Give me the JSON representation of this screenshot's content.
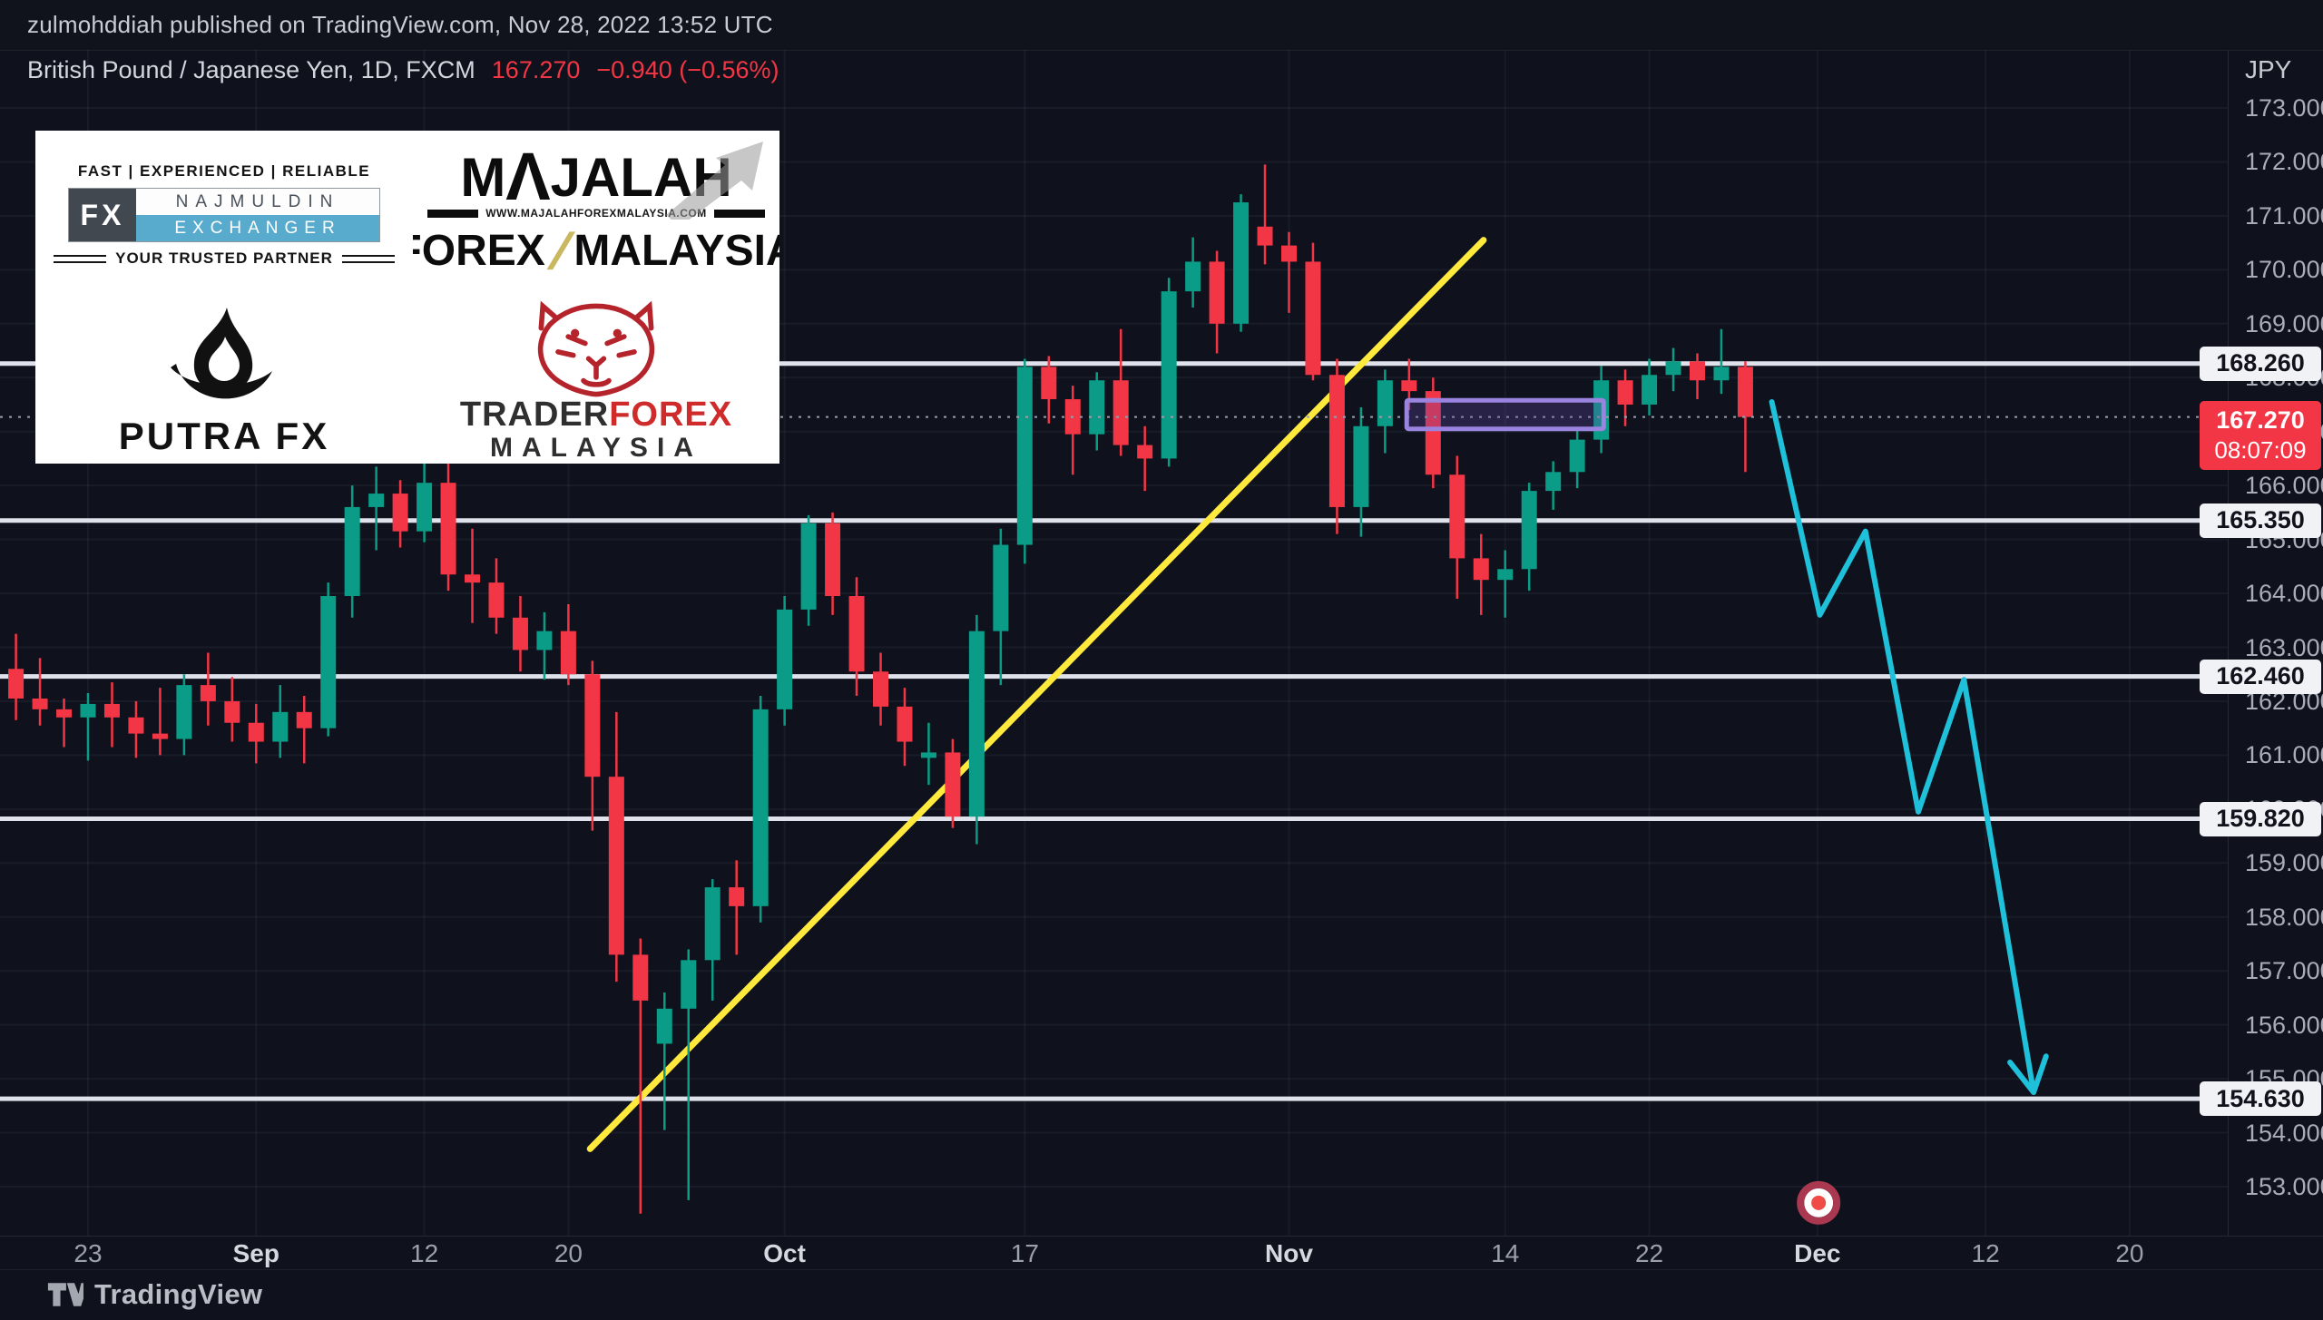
{
  "page": {
    "publish_line": "zulmohddiah published on TradingView.com, Nov 28, 2022 13:52 UTC"
  },
  "legend": {
    "symbol_title": "British Pound / Japanese Yen, 1D, FXCM",
    "last_price": "167.270",
    "change": "−0.940 (−0.56%)"
  },
  "axis": {
    "currency": "JPY",
    "tick_min": 153,
    "tick_max": 173,
    "tick_step": 1,
    "level_labels": [
      "168.260",
      "165.350",
      "162.460",
      "159.820",
      "154.630"
    ],
    "last": {
      "price_label": "167.270",
      "countdown": "08:07:09"
    }
  },
  "time_axis": {
    "labels": [
      {
        "text": "23",
        "day": 3,
        "type": "day"
      },
      {
        "text": "Sep",
        "day": 10,
        "type": "month"
      },
      {
        "text": "12",
        "day": 17,
        "type": "day"
      },
      {
        "text": "20",
        "day": 23,
        "type": "day"
      },
      {
        "text": "Oct",
        "day": 32,
        "type": "month"
      },
      {
        "text": "17",
        "day": 42,
        "type": "day"
      },
      {
        "text": "Nov",
        "day": 53,
        "type": "month"
      },
      {
        "text": "14",
        "day": 62,
        "type": "day"
      },
      {
        "text": "22",
        "day": 68,
        "type": "day"
      },
      {
        "text": "Dec",
        "day": 75,
        "type": "month"
      },
      {
        "text": "12",
        "day": 82,
        "type": "day"
      },
      {
        "text": "20",
        "day": 88,
        "type": "day"
      }
    ]
  },
  "chart_data": {
    "type": "candlestick",
    "title": "British Pound / Japanese Yen, 1D, FXCM",
    "ylim": [
      152.3,
      173.6
    ],
    "grid": true,
    "columns": [
      "date",
      "open",
      "high",
      "low",
      "close"
    ],
    "candles": [
      [
        "Aug 18",
        162.6,
        163.25,
        161.65,
        162.05
      ],
      [
        "Aug 19",
        162.05,
        162.8,
        161.55,
        161.85
      ],
      [
        "Aug 22",
        161.85,
        162.05,
        161.15,
        161.7
      ],
      [
        "Aug 23",
        161.7,
        162.15,
        160.9,
        161.95
      ],
      [
        "Aug 24",
        161.95,
        162.35,
        161.15,
        161.7
      ],
      [
        "Aug 25",
        161.7,
        162.0,
        160.95,
        161.4
      ],
      [
        "Aug 26",
        161.4,
        162.25,
        161.0,
        161.3
      ],
      [
        "Aug 29",
        161.3,
        162.5,
        161.0,
        162.3
      ],
      [
        "Aug 30",
        162.3,
        162.9,
        161.55,
        162.0
      ],
      [
        "Aug 31",
        162.0,
        162.45,
        161.25,
        161.6
      ],
      [
        "Sep 1",
        161.6,
        161.95,
        160.85,
        161.25
      ],
      [
        "Sep 2",
        161.25,
        162.3,
        160.95,
        161.8
      ],
      [
        "Sep 5",
        161.8,
        162.1,
        160.85,
        161.5
      ],
      [
        "Sep 6",
        161.5,
        164.2,
        161.35,
        163.95
      ],
      [
        "Sep 7",
        163.95,
        166.0,
        163.55,
        165.6
      ],
      [
        "Sep 8",
        165.6,
        166.35,
        164.8,
        165.85
      ],
      [
        "Sep 9",
        165.85,
        166.1,
        164.85,
        165.15
      ],
      [
        "Sep 12",
        165.15,
        166.5,
        164.95,
        166.05
      ],
      [
        "Sep 13",
        166.05,
        166.45,
        164.05,
        164.35
      ],
      [
        "Sep 14",
        164.35,
        165.2,
        163.45,
        164.2
      ],
      [
        "Sep 15",
        164.2,
        164.65,
        163.25,
        163.55
      ],
      [
        "Sep 16",
        163.55,
        163.95,
        162.55,
        162.95
      ],
      [
        "Sep 19",
        162.95,
        163.65,
        162.4,
        163.3
      ],
      [
        "Sep 20",
        163.3,
        163.8,
        162.3,
        162.5
      ],
      [
        "Sep 21",
        162.5,
        162.75,
        159.6,
        160.6
      ],
      [
        "Sep 22",
        160.6,
        161.8,
        156.8,
        157.3
      ],
      [
        "Sep 23",
        157.3,
        157.6,
        152.5,
        156.45
      ],
      [
        "Sep 26",
        155.65,
        156.6,
        154.05,
        156.3
      ],
      [
        "Sep 27",
        156.3,
        157.4,
        152.75,
        157.2
      ],
      [
        "Sep 28",
        157.2,
        158.7,
        156.45,
        158.55
      ],
      [
        "Sep 29",
        158.55,
        159.05,
        157.3,
        158.2
      ],
      [
        "Sep 30",
        158.2,
        162.1,
        157.9,
        161.85
      ],
      [
        "Oct 3",
        161.85,
        163.95,
        161.55,
        163.7
      ],
      [
        "Oct 4",
        163.7,
        165.45,
        163.4,
        165.3
      ],
      [
        "Oct 5",
        165.3,
        165.5,
        163.6,
        163.95
      ],
      [
        "Oct 6",
        163.95,
        164.3,
        162.1,
        162.55
      ],
      [
        "Oct 7",
        162.55,
        162.9,
        161.55,
        161.9
      ],
      [
        "Oct 10",
        161.9,
        162.25,
        160.8,
        161.25
      ],
      [
        "Oct 11",
        160.95,
        161.6,
        160.45,
        161.05
      ],
      [
        "Oct 12",
        161.05,
        161.3,
        159.65,
        159.86
      ],
      [
        "Oct 13",
        159.86,
        163.6,
        159.35,
        163.3
      ],
      [
        "Oct 14",
        163.3,
        165.2,
        162.3,
        164.9
      ],
      [
        "Oct 17",
        164.9,
        168.35,
        164.55,
        168.2
      ],
      [
        "Oct 18",
        168.2,
        168.4,
        167.15,
        167.6
      ],
      [
        "Oct 19",
        167.6,
        167.85,
        166.2,
        166.95
      ],
      [
        "Oct 20",
        166.95,
        168.1,
        166.65,
        167.95
      ],
      [
        "Oct 21",
        167.95,
        168.9,
        166.55,
        166.75
      ],
      [
        "Oct 24",
        166.75,
        167.1,
        165.9,
        166.5
      ],
      [
        "Oct 25",
        166.5,
        169.85,
        166.35,
        169.6
      ],
      [
        "Oct 26",
        169.6,
        170.6,
        169.3,
        170.15
      ],
      [
        "Oct 27",
        170.15,
        170.35,
        168.45,
        169.0
      ],
      [
        "Oct 28",
        169.0,
        171.4,
        168.85,
        171.25
      ],
      [
        "Oct 31",
        170.8,
        171.95,
        170.1,
        170.45
      ],
      [
        "Nov 1",
        170.45,
        170.7,
        169.2,
        170.15
      ],
      [
        "Nov 2",
        170.15,
        170.5,
        167.95,
        168.05
      ],
      [
        "Nov 3",
        168.05,
        168.35,
        165.1,
        165.6
      ],
      [
        "Nov 4",
        165.6,
        167.45,
        165.05,
        167.1
      ],
      [
        "Nov 7",
        167.1,
        168.15,
        166.6,
        167.95
      ],
      [
        "Nov 8",
        167.95,
        168.35,
        167.4,
        167.75
      ],
      [
        "Nov 9",
        167.75,
        168.0,
        165.95,
        166.2
      ],
      [
        "Nov 10",
        166.2,
        166.55,
        163.9,
        164.65
      ],
      [
        "Nov 11",
        164.65,
        165.1,
        163.6,
        164.25
      ],
      [
        "Nov 14",
        164.25,
        164.8,
        163.55,
        164.45
      ],
      [
        "Nov 15",
        164.45,
        166.05,
        164.05,
        165.9
      ],
      [
        "Nov 16",
        165.9,
        166.45,
        165.55,
        166.25
      ],
      [
        "Nov 17",
        166.25,
        167.05,
        165.95,
        166.85
      ],
      [
        "Nov 18",
        166.85,
        168.22,
        166.6,
        167.95
      ],
      [
        "Nov 21",
        167.95,
        168.15,
        167.1,
        167.5
      ],
      [
        "Nov 22",
        167.5,
        168.35,
        167.3,
        168.05
      ],
      [
        "Nov 23",
        168.05,
        168.55,
        167.75,
        168.3
      ],
      [
        "Nov 24",
        168.3,
        168.45,
        167.6,
        167.95
      ],
      [
        "Nov 25",
        167.95,
        168.9,
        167.7,
        168.2
      ],
      [
        "Nov 28",
        168.2,
        168.3,
        166.25,
        167.27
      ]
    ],
    "levels": [
      168.26,
      165.35,
      162.46,
      159.82,
      154.63
    ],
    "last_price": 167.27,
    "trendline": {
      "from": {
        "day": 23.9,
        "price": 153.7
      },
      "to": {
        "day": 61.1,
        "price": 170.55
      }
    },
    "projection": {
      "points": [
        {
          "day": 73.1,
          "price": 167.55
        },
        {
          "day": 75.1,
          "price": 163.6
        },
        {
          "day": 77.0,
          "price": 165.15
        },
        {
          "day": 79.2,
          "price": 159.95
        },
        {
          "day": 81.1,
          "price": 162.4
        },
        {
          "day": 84.0,
          "price": 154.75
        }
      ]
    },
    "supply_box": {
      "day_start": 57.9,
      "day_end": 66.1,
      "price_top": 167.58,
      "price_bottom": 167.05
    },
    "marker": {
      "day": 75.05,
      "price": 152.7,
      "type": "bullseye"
    }
  },
  "logos": {
    "najmuldin": {
      "tagline": "FAST | EXPERIENCED | RELIABLE",
      "fx": "FX",
      "name": "NAJMULDIN",
      "sub": "EXCHANGER",
      "partner": "YOUR TRUSTED PARTNER"
    },
    "majalah": {
      "word_pre": "M",
      "word_caret": "Λ",
      "word_post": "JALAH",
      "url": "WWW.MAJALAHFOREXMALAYSIA.COM",
      "line2a": "FOREX",
      "slash": "/",
      "line2b": "MALAYSIA"
    },
    "putra": {
      "name": "PUTRA FX"
    },
    "traderforex": {
      "part1": "TRADER",
      "part2": "FOREX",
      "line2": "MALAYSIA"
    }
  },
  "footer": {
    "brand": "TradingView"
  },
  "colors": {
    "up": "#0a9c86",
    "down": "#f23645",
    "level_line": "#dfe2ea",
    "trendline": "#ffe93d",
    "projection": "#1fc0da",
    "box_border": "#9b84e0",
    "box_fill": "rgba(98,74,170,0.30)",
    "last_price_bg": "#f23645",
    "grid": "rgba(160,170,195,0.07)",
    "dotted_price_line": "#9aa0ad"
  }
}
